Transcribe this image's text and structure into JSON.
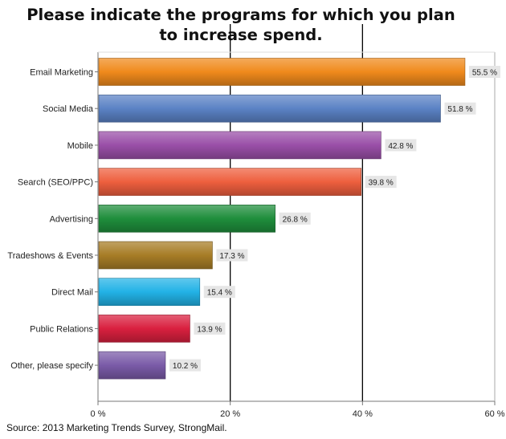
{
  "chart_data": {
    "type": "bar",
    "orientation": "horizontal",
    "title_lines": [
      "Please indicate the programs for which you plan",
      "to increase spend."
    ],
    "categories": [
      "Email Marketing",
      "Social Media",
      "Mobile",
      "Search (SEO/PPC)",
      "Advertising",
      "Tradeshows & Events",
      "Direct Mail",
      "Public Relations",
      "Other, please specify"
    ],
    "values": [
      55.5,
      51.8,
      42.8,
      39.8,
      26.8,
      17.3,
      15.4,
      13.9,
      10.2
    ],
    "value_labels": [
      "55.5 %",
      "51.8 %",
      "42.8 %",
      "39.8 %",
      "26.8 %",
      "17.3 %",
      "15.4 %",
      "13.9 %",
      "10.2 %"
    ],
    "colors": [
      "#f08a1c",
      "#5b82c5",
      "#9a4fa8",
      "#ee5f3e",
      "#1f8e3c",
      "#a77d26",
      "#22b2e6",
      "#d9203f",
      "#7a5ba8"
    ],
    "xlim": [
      0,
      60
    ],
    "xticks": [
      0,
      20,
      40,
      60
    ],
    "xtick_labels": [
      "0 %",
      "20 %",
      "40 %",
      "60 %"
    ],
    "grid": "vertical lines at 20 and 40",
    "legend": "none"
  },
  "source": "Source: 2013 Marketing Trends Survey, StrongMail."
}
